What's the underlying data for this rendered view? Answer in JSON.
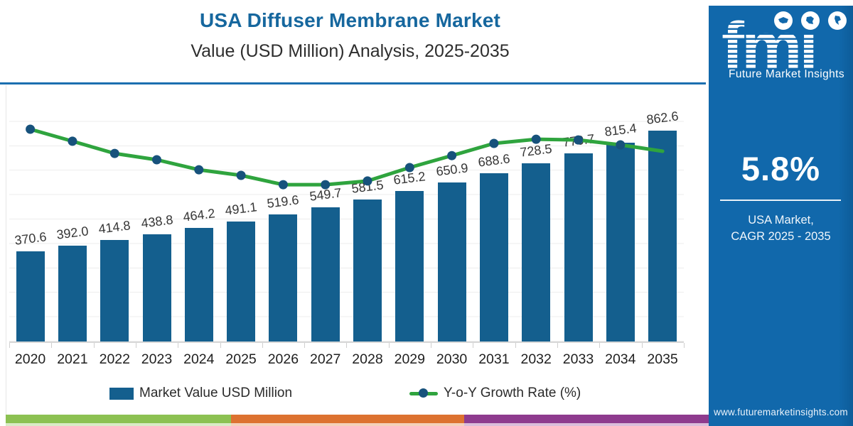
{
  "header": {
    "title": "USA Diffuser Membrane Market",
    "subtitle": "Value (USD Million) Analysis, 2025-2035"
  },
  "chart_data": {
    "type": "bar+line",
    "title": "USA Diffuser Membrane Market",
    "subtitle": "Value (USD Million) Analysis, 2025-2035",
    "categories": [
      "2020",
      "2021",
      "2022",
      "2023",
      "2024",
      "2025",
      "2026",
      "2027",
      "2028",
      "2029",
      "2030",
      "2031",
      "2032",
      "2033",
      "2034",
      "2035"
    ],
    "series": [
      {
        "name": "Market Value USD Million",
        "type": "bar",
        "color": "#145f8e",
        "values": [
          370.6,
          392.0,
          414.8,
          438.8,
          464.2,
          491.1,
          519.6,
          549.7,
          581.5,
          615.2,
          650.9,
          688.6,
          728.5,
          770.7,
          815.4,
          862.6
        ]
      },
      {
        "name": "Y-o-Y Growth Rate (%)",
        "type": "line",
        "color": "#2fa43e",
        "marker_color": "#17527c",
        "axis": "hidden",
        "values_visual_norm": [
          0.875,
          0.826,
          0.776,
          0.75,
          0.709,
          0.686,
          0.648,
          0.648,
          0.663,
          0.718,
          0.767,
          0.817,
          0.834,
          0.831,
          0.811,
          0.785
        ]
      }
    ],
    "ylim": [
      0,
      1000
    ],
    "grid": "horizontal gridlines every 100, y-axis labels hidden",
    "legend_position": "bottom"
  },
  "sidebar": {
    "logo_text": "fmi",
    "logo_subtext": "Future Market Insights",
    "icons": [
      "usa-map-icon",
      "world-map-icon",
      "americas-map-icon"
    ],
    "cagr_value": "5.8%",
    "cagr_label_line1": "USA Market,",
    "cagr_label_line2": "CAGR 2025 - 2035",
    "website": "www.futuremarketinsights.com",
    "background_color": "#1168ab"
  },
  "colors": {
    "title_blue": "#16679e",
    "divider_blue": "#1b6fb0",
    "bar_blue": "#145f8e",
    "line_green": "#2fa43e",
    "marker_navy": "#17527c"
  },
  "footer_stripe": [
    {
      "name": "green-segment",
      "color": "#8cc152"
    },
    {
      "name": "orange-segment",
      "color": "#dd7230"
    },
    {
      "name": "purple-segment",
      "color": "#8e3b8e"
    }
  ]
}
